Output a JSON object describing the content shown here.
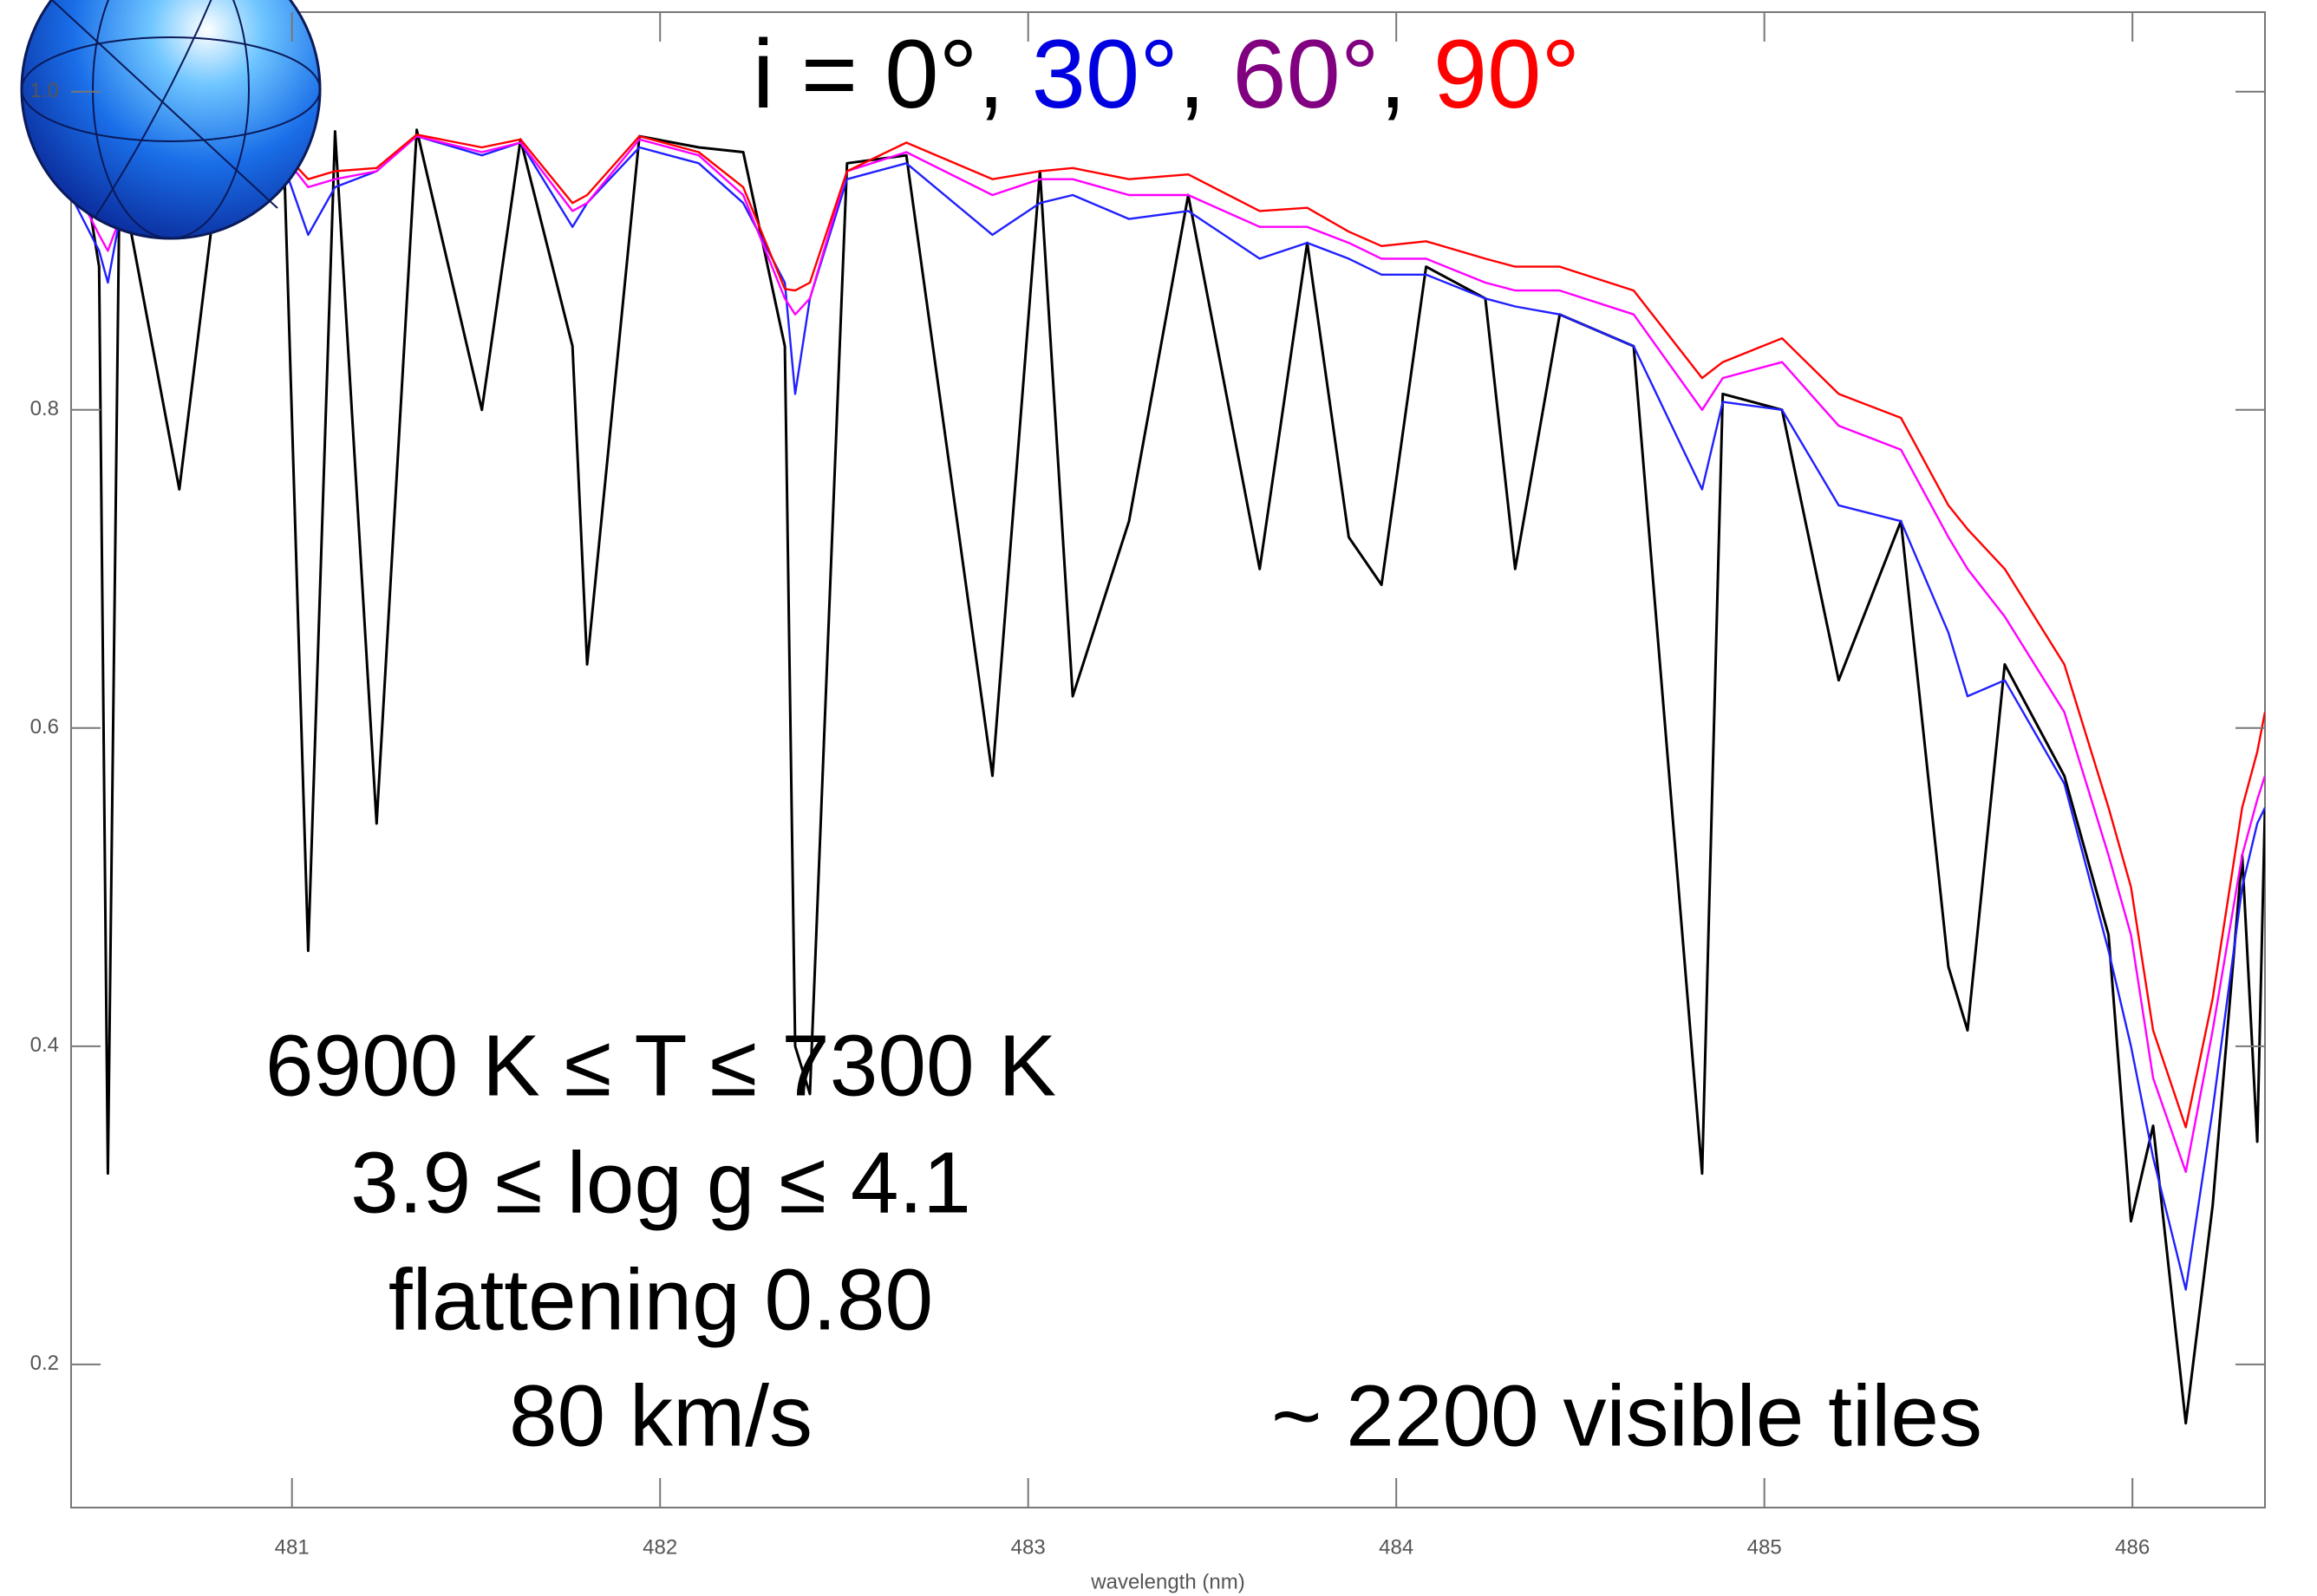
{
  "chart_data": {
    "type": "line",
    "title_separator": ", ",
    "x_label": "wavelength (nm)",
    "annotations": [
      "6900 K ≤ T ≤ 7300 K",
      "3.9 ≤ log g ≤ 4.1",
      "flattening 0.80",
      "80 km/s",
      "~ 2200 visible tiles"
    ],
    "xlim": [
      480.4,
      486.36
    ],
    "ylim": [
      0.11,
      1.05
    ],
    "xticks": [
      481,
      482,
      483,
      484,
      485,
      486
    ],
    "yticks": [
      0.2,
      0.4,
      0.6,
      0.8,
      {
        "value": 1,
        "label": "1.0"
      }
    ],
    "grid": false,
    "x": [
      480.41,
      480.476,
      480.5,
      480.532,
      480.694,
      480.815,
      480.976,
      481.044,
      481.117,
      481.23,
      481.339,
      481.516,
      481.621,
      481.762,
      481.802,
      481.944,
      482.105,
      482.226,
      482.339,
      482.367,
      482.407,
      482.508,
      482.669,
      482.903,
      483.032,
      483.121,
      483.274,
      483.435,
      483.629,
      483.758,
      483.871,
      483.96,
      484.081,
      484.242,
      484.323,
      484.444,
      484.645,
      484.831,
      484.887,
      485.048,
      485.202,
      485.371,
      485.5,
      485.552,
      485.653,
      485.815,
      485.935,
      485.996,
      486.056,
      486.145,
      486.218,
      486.298,
      486.339,
      486.36
    ],
    "series": [
      {
        "name": "i = 0°",
        "color": "#000000",
        "legend_color": "#000000",
        "values": [
          0.985,
          0.89,
          0.32,
          0.95,
          0.75,
          0.978,
          0.976,
          0.46,
          0.975,
          0.54,
          0.976,
          0.8,
          0.97,
          0.84,
          0.64,
          0.972,
          0.965,
          0.962,
          0.84,
          0.4,
          0.37,
          0.955,
          0.96,
          0.57,
          0.95,
          0.62,
          0.73,
          0.935,
          0.7,
          0.905,
          0.72,
          0.69,
          0.89,
          0.87,
          0.7,
          0.86,
          0.84,
          0.32,
          0.81,
          0.8,
          0.63,
          0.73,
          0.45,
          0.41,
          0.64,
          0.57,
          0.47,
          0.29,
          0.35,
          0.163,
          0.3,
          0.52,
          0.34,
          0.55
        ]
      },
      {
        "name": "30°",
        "color": "#2020ff",
        "legend_color": "#0000e0",
        "values": [
          0.93,
          0.9,
          0.88,
          0.92,
          0.965,
          0.968,
          0.955,
          0.91,
          0.94,
          0.95,
          0.972,
          0.96,
          0.968,
          0.915,
          0.93,
          0.965,
          0.955,
          0.93,
          0.88,
          0.81,
          0.87,
          0.945,
          0.955,
          0.91,
          0.93,
          0.935,
          0.92,
          0.925,
          0.895,
          0.905,
          0.895,
          0.885,
          0.885,
          0.87,
          0.865,
          0.86,
          0.84,
          0.75,
          0.805,
          0.8,
          0.74,
          0.73,
          0.66,
          0.62,
          0.63,
          0.565,
          0.46,
          0.4,
          0.33,
          0.247,
          0.36,
          0.5,
          0.54,
          0.55
        ]
      },
      {
        "name": "60°",
        "color": "#ff00ff",
        "legend_color": "#800080",
        "values": [
          0.94,
          0.91,
          0.9,
          0.92,
          0.96,
          0.965,
          0.96,
          0.94,
          0.945,
          0.95,
          0.972,
          0.962,
          0.968,
          0.925,
          0.93,
          0.97,
          0.96,
          0.935,
          0.87,
          0.86,
          0.87,
          0.95,
          0.962,
          0.935,
          0.945,
          0.945,
          0.935,
          0.935,
          0.915,
          0.915,
          0.905,
          0.895,
          0.895,
          0.88,
          0.875,
          0.875,
          0.86,
          0.8,
          0.82,
          0.83,
          0.79,
          0.775,
          0.72,
          0.7,
          0.67,
          0.61,
          0.52,
          0.47,
          0.38,
          0.321,
          0.41,
          0.52,
          0.555,
          0.57
        ]
      },
      {
        "name": "90°",
        "color": "#ff0000",
        "legend_color": "#ff0000",
        "values": [
          0.95,
          0.93,
          0.92,
          0.925,
          0.96,
          0.965,
          0.962,
          0.945,
          0.95,
          0.952,
          0.973,
          0.965,
          0.97,
          0.93,
          0.935,
          0.972,
          0.962,
          0.94,
          0.876,
          0.875,
          0.88,
          0.95,
          0.968,
          0.945,
          0.95,
          0.952,
          0.945,
          0.948,
          0.925,
          0.927,
          0.912,
          0.903,
          0.906,
          0.895,
          0.89,
          0.89,
          0.875,
          0.82,
          0.83,
          0.845,
          0.81,
          0.795,
          0.74,
          0.725,
          0.7,
          0.64,
          0.55,
          0.5,
          0.41,
          0.349,
          0.43,
          0.55,
          0.585,
          0.61
        ]
      }
    ]
  }
}
